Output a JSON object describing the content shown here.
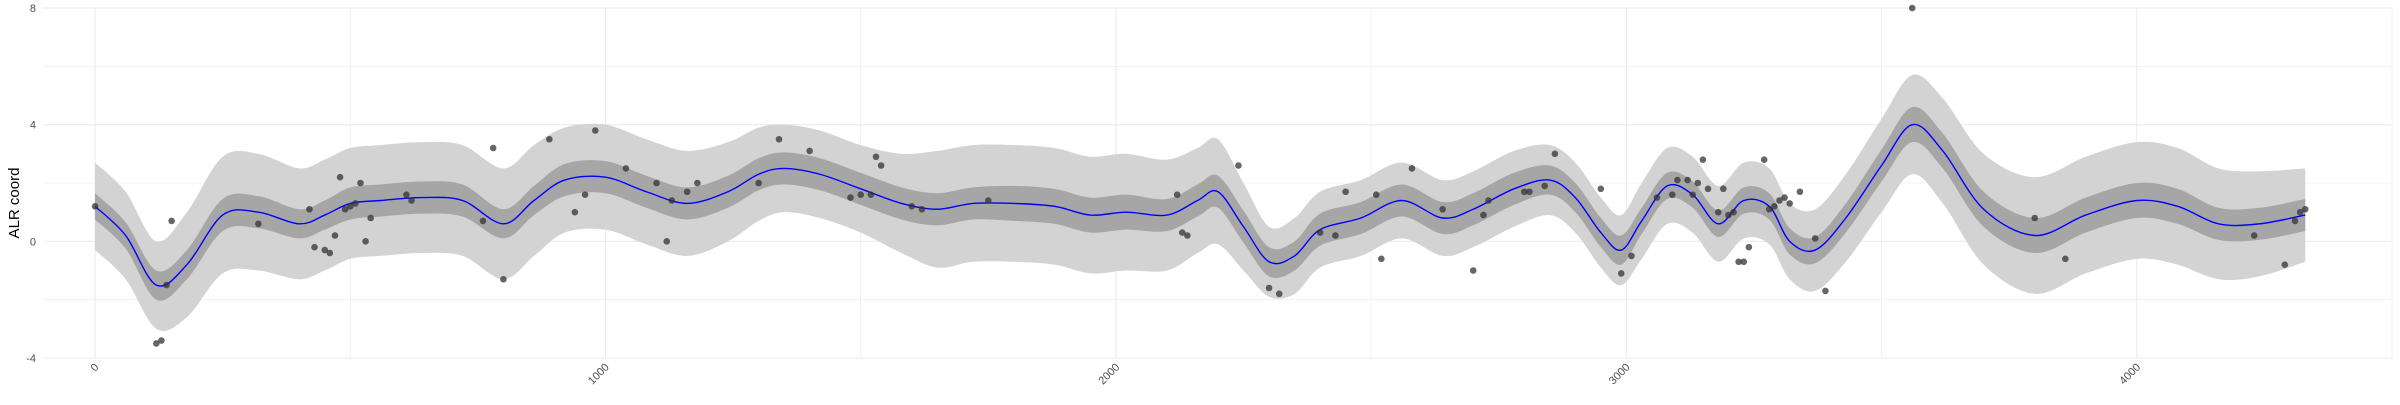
{
  "chart_data": {
    "type": "line",
    "title": "",
    "xlabel": "",
    "ylabel": "ALR coord",
    "xlim": [
      -100,
      4500
    ],
    "ylim": [
      -4,
      8
    ],
    "x_ticks": [
      0,
      1000,
      2000,
      3000,
      4000
    ],
    "x_tick_labels": [
      "0",
      "1000",
      "2000",
      "3000",
      "4000"
    ],
    "y_ticks": [
      -4,
      0,
      4,
      8
    ],
    "y_tick_labels": [
      "-4",
      "0",
      "4",
      "8"
    ],
    "grid": true,
    "legend": "none",
    "colors": {
      "mean_line": "#0000ff",
      "inner_band": "#a6a6a6",
      "outer_band": "#d3d3d3",
      "points": "#333333",
      "grid": "#ebebeb"
    },
    "series": [
      {
        "kind": "smooth_mean",
        "x": [
          0,
          60,
          120,
          180,
          250,
          320,
          400,
          450,
          500,
          560,
          640,
          720,
          800,
          860,
          920,
          1000,
          1080,
          1160,
          1240,
          1300,
          1350,
          1420,
          1500,
          1580,
          1650,
          1720,
          1800,
          1880,
          1950,
          2020,
          2100,
          2160,
          2200,
          2250,
          2300,
          2350,
          2400,
          2480,
          2560,
          2640,
          2700,
          2780,
          2850,
          2900,
          2950,
          2990,
          3030,
          3080,
          3130,
          3180,
          3230,
          3280,
          3320,
          3370,
          3430,
          3500,
          3560,
          3620,
          3700,
          3800,
          3900,
          4000,
          4080,
          4160,
          4240,
          4330
        ],
        "y": [
          1.2,
          0.2,
          -1.5,
          -0.8,
          0.9,
          1.0,
          0.6,
          0.9,
          1.3,
          1.4,
          1.5,
          1.4,
          0.6,
          1.4,
          2.1,
          2.2,
          1.7,
          1.3,
          1.7,
          2.3,
          2.5,
          2.3,
          1.8,
          1.3,
          1.1,
          1.3,
          1.3,
          1.2,
          0.9,
          1.0,
          0.9,
          1.4,
          1.7,
          0.5,
          -0.7,
          -0.5,
          0.4,
          0.8,
          1.4,
          0.8,
          1.1,
          1.8,
          2.1,
          1.5,
          0.3,
          -0.3,
          0.7,
          1.9,
          1.6,
          0.6,
          1.4,
          1.2,
          0.0,
          -0.3,
          0.8,
          2.6,
          4.0,
          3.1,
          1.1,
          0.2,
          0.9,
          1.4,
          1.2,
          0.6,
          0.6,
          0.9
        ],
        "inner_halfwidth": [
          0.45,
          0.45,
          0.5,
          0.5,
          0.55,
          0.55,
          0.5,
          0.5,
          0.55,
          0.55,
          0.55,
          0.55,
          0.5,
          0.5,
          0.55,
          0.55,
          0.55,
          0.55,
          0.55,
          0.55,
          0.55,
          0.55,
          0.55,
          0.55,
          0.55,
          0.55,
          0.6,
          0.6,
          0.6,
          0.6,
          0.55,
          0.55,
          0.55,
          0.55,
          0.5,
          0.5,
          0.55,
          0.55,
          0.55,
          0.55,
          0.55,
          0.55,
          0.5,
          0.5,
          0.5,
          0.5,
          0.45,
          0.45,
          0.45,
          0.45,
          0.45,
          0.45,
          0.45,
          0.45,
          0.5,
          0.55,
          0.6,
          0.6,
          0.6,
          0.6,
          0.6,
          0.6,
          0.6,
          0.55,
          0.55,
          0.55
        ],
        "outer_halfwidth": [
          1.5,
          1.5,
          1.5,
          1.8,
          2.0,
          2.0,
          1.9,
          1.9,
          1.9,
          1.9,
          1.9,
          1.9,
          1.9,
          1.9,
          1.8,
          1.8,
          1.8,
          1.8,
          1.7,
          1.6,
          1.5,
          1.5,
          1.5,
          1.7,
          2.0,
          2.0,
          2.0,
          2.0,
          2.0,
          2.0,
          1.9,
          1.8,
          1.8,
          1.5,
          1.2,
          1.3,
          1.3,
          1.3,
          1.3,
          1.3,
          1.3,
          1.3,
          1.2,
          1.2,
          1.2,
          1.2,
          1.3,
          1.3,
          1.3,
          1.3,
          1.3,
          1.3,
          1.3,
          1.4,
          1.5,
          1.6,
          1.7,
          1.8,
          1.9,
          2.0,
          2.0,
          2.0,
          2.0,
          1.9,
          1.8,
          1.6
        ]
      },
      {
        "kind": "observations",
        "points": [
          [
            0,
            1.2
          ],
          [
            120,
            -3.5
          ],
          [
            130,
            -3.4
          ],
          [
            140,
            -1.5
          ],
          [
            150,
            0.7
          ],
          [
            320,
            0.6
          ],
          [
            420,
            1.1
          ],
          [
            430,
            -0.2
          ],
          [
            450,
            -0.3
          ],
          [
            460,
            -0.4
          ],
          [
            470,
            0.2
          ],
          [
            480,
            2.2
          ],
          [
            490,
            1.1
          ],
          [
            500,
            1.2
          ],
          [
            510,
            1.3
          ],
          [
            520,
            2.0
          ],
          [
            530,
            0.0
          ],
          [
            540,
            0.8
          ],
          [
            610,
            1.6
          ],
          [
            620,
            1.4
          ],
          [
            760,
            0.7
          ],
          [
            780,
            3.2
          ],
          [
            800,
            -1.3
          ],
          [
            890,
            3.5
          ],
          [
            940,
            1.0
          ],
          [
            960,
            1.6
          ],
          [
            980,
            3.8
          ],
          [
            1040,
            2.5
          ],
          [
            1100,
            2.0
          ],
          [
            1120,
            0.0
          ],
          [
            1130,
            1.4
          ],
          [
            1160,
            1.7
          ],
          [
            1180,
            2.0
          ],
          [
            1300,
            2.0
          ],
          [
            1340,
            3.5
          ],
          [
            1400,
            3.1
          ],
          [
            1480,
            1.5
          ],
          [
            1500,
            1.6
          ],
          [
            1520,
            1.6
          ],
          [
            1530,
            2.9
          ],
          [
            1540,
            2.6
          ],
          [
            1600,
            1.2
          ],
          [
            1620,
            1.1
          ],
          [
            1750,
            1.4
          ],
          [
            2120,
            1.6
          ],
          [
            2130,
            0.3
          ],
          [
            2140,
            0.2
          ],
          [
            2240,
            2.6
          ],
          [
            2300,
            -1.6
          ],
          [
            2320,
            -1.8
          ],
          [
            2400,
            0.3
          ],
          [
            2430,
            0.2
          ],
          [
            2450,
            1.7
          ],
          [
            2510,
            1.6
          ],
          [
            2520,
            -0.6
          ],
          [
            2580,
            2.5
          ],
          [
            2640,
            1.1
          ],
          [
            2700,
            -1.0
          ],
          [
            2720,
            0.9
          ],
          [
            2730,
            1.4
          ],
          [
            2800,
            1.7
          ],
          [
            2810,
            1.7
          ],
          [
            2840,
            1.9
          ],
          [
            2860,
            3.0
          ],
          [
            2950,
            1.8
          ],
          [
            2990,
            -1.1
          ],
          [
            3010,
            -0.5
          ],
          [
            3060,
            1.5
          ],
          [
            3090,
            1.6
          ],
          [
            3100,
            2.1
          ],
          [
            3120,
            2.1
          ],
          [
            3130,
            1.6
          ],
          [
            3140,
            2.0
          ],
          [
            3150,
            2.8
          ],
          [
            3160,
            1.8
          ],
          [
            3180,
            1.0
          ],
          [
            3190,
            1.8
          ],
          [
            3200,
            0.9
          ],
          [
            3210,
            1.0
          ],
          [
            3220,
            -0.7
          ],
          [
            3230,
            -0.7
          ],
          [
            3240,
            -0.2
          ],
          [
            3270,
            2.8
          ],
          [
            3280,
            1.1
          ],
          [
            3290,
            1.2
          ],
          [
            3300,
            1.4
          ],
          [
            3310,
            1.5
          ],
          [
            3320,
            1.3
          ],
          [
            3340,
            1.7
          ],
          [
            3370,
            0.1
          ],
          [
            3390,
            -1.7
          ],
          [
            3560,
            8.0
          ],
          [
            3800,
            0.8
          ],
          [
            3860,
            -0.6
          ],
          [
            4230,
            0.2
          ],
          [
            4290,
            -0.8
          ],
          [
            4310,
            0.7
          ],
          [
            4320,
            1.0
          ],
          [
            4330,
            1.1
          ]
        ]
      }
    ]
  }
}
